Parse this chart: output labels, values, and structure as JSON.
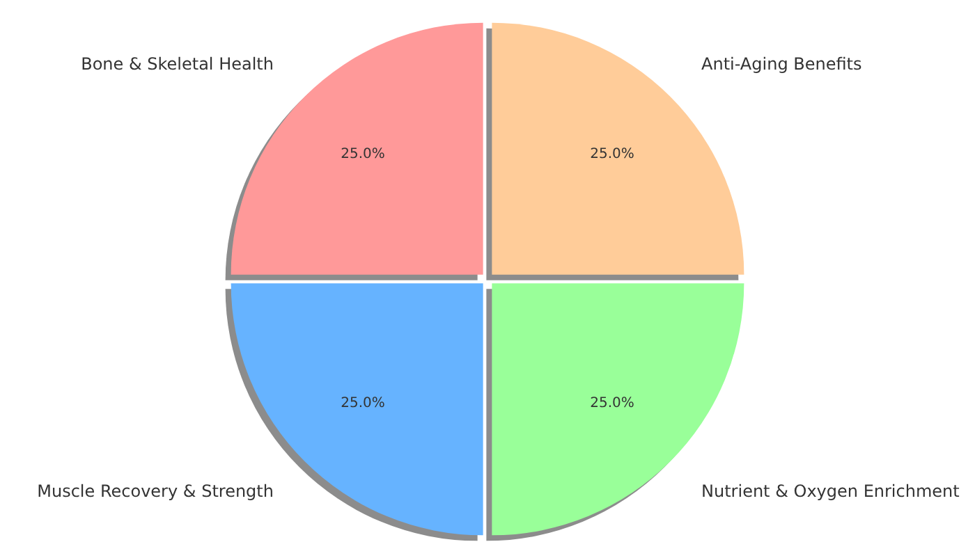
{
  "chart_data": {
    "type": "pie",
    "categories": [
      "Anti-Aging Benefits",
      "Nutrient & Oxygen Enrichment",
      "Muscle Recovery & Strength",
      "Bone & Skeletal Health"
    ],
    "values": [
      25,
      25,
      25,
      25
    ],
    "colors": [
      "#ffcc99",
      "#99ff99",
      "#66b3ff",
      "#ff9999"
    ],
    "value_labels": [
      "25.0%",
      "25.0%",
      "25.0%",
      "25.0%"
    ],
    "legend": false
  }
}
